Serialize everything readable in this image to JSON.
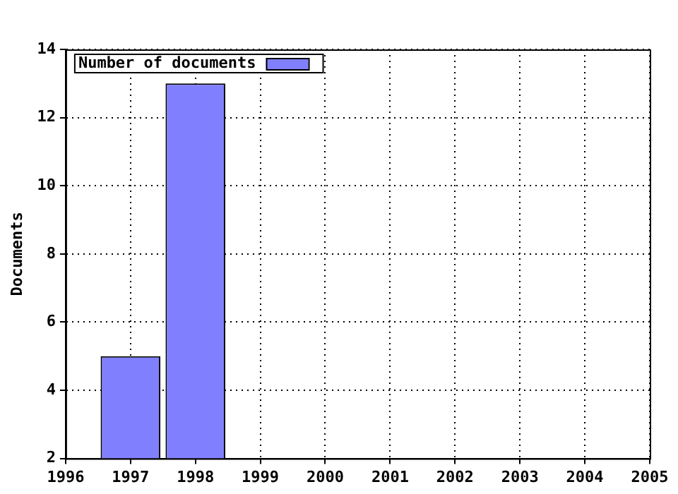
{
  "chart_data": {
    "type": "bar",
    "ylabel": "Documents",
    "x": [
      1997,
      1998
    ],
    "series": [
      {
        "name": "Number of documents",
        "color": "#8080ff",
        "values": [
          5,
          13
        ]
      }
    ],
    "xlim": [
      1996,
      2005
    ],
    "xticks": [
      1996,
      1997,
      1998,
      1999,
      2000,
      2001,
      2002,
      2003,
      2004,
      2005
    ],
    "ylim": [
      2,
      14
    ],
    "yticks": [
      2,
      4,
      6,
      8,
      10,
      12,
      14
    ],
    "grid": true,
    "legend": "top left"
  }
}
